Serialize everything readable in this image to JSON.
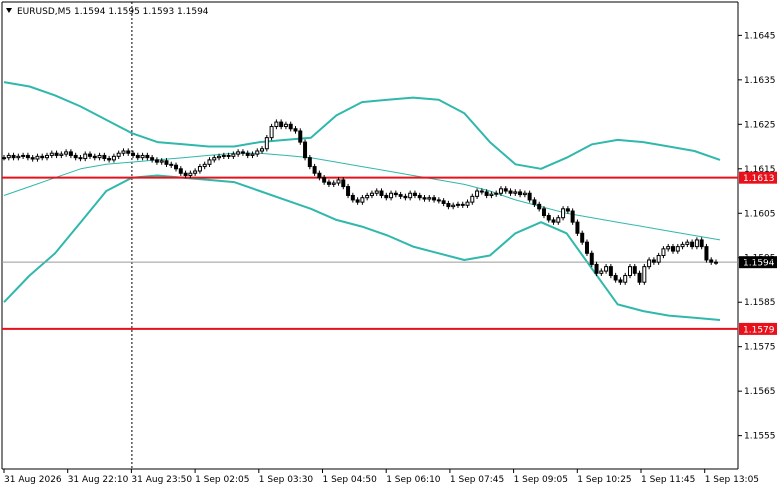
{
  "header": {
    "menu_icon": "triangle-down-icon",
    "title": "EURUSD,M5  1.1594 1.1595 1.1593 1.1594"
  },
  "colors": {
    "background": "#ffffff",
    "candle": "#000000",
    "bollinger": "#2fb8ab",
    "ma": "#2fb8ab",
    "level": "#e8101a",
    "grid_axis": "#000000"
  },
  "chart_data": {
    "type": "candlestick",
    "symbol": "EURUSD",
    "timeframe": "M5",
    "ylim": [
      1.15475,
      1.16525
    ],
    "y_ticks": [
      "1.1645",
      "1.1635",
      "1.1625",
      "1.1615",
      "1.1605",
      "1.1595",
      "1.1585",
      "1.1575",
      "1.1565",
      "1.1555"
    ],
    "x_ticks": [
      "31 Aug 2026",
      "31 Aug 22:10",
      "31 Aug 23:50",
      "1 Sep 02:05",
      "1 Sep 03:30",
      "1 Sep 04:50",
      "1 Sep 06:10",
      "1 Sep 07:45",
      "1 Sep 09:05",
      "1 Sep 10:25",
      "1 Sep 11:45",
      "1 Sep 13:05"
    ],
    "session_separator_after": "31 Aug 23:50",
    "levels": [
      {
        "value": 1.1613,
        "label": "1.1613"
      },
      {
        "value": 1.1579,
        "label": "1.1579"
      }
    ],
    "current_price": {
      "value": 1.1594,
      "label": "1.1594"
    },
    "candles_close": [
      1.16175,
      1.1618,
      1.16175,
      1.16178,
      1.1618,
      1.16175,
      1.16172,
      1.16178,
      1.16175,
      1.1618,
      1.16185,
      1.1618,
      1.16183,
      1.16188,
      1.1618,
      1.16175,
      1.16173,
      1.16183,
      1.16178,
      1.16175,
      1.1618,
      1.16173,
      1.1617,
      1.16178,
      1.16185,
      1.1619,
      1.16185,
      1.1618,
      1.16175,
      1.1618,
      1.16175,
      1.1617,
      1.16165,
      1.16168,
      1.1616,
      1.16158,
      1.1615,
      1.1614,
      1.16135,
      1.1614,
      1.16145,
      1.16155,
      1.1616,
      1.1617,
      1.16175,
      1.16178,
      1.1618,
      1.16178,
      1.16183,
      1.16188,
      1.16185,
      1.1618,
      1.16183,
      1.1619,
      1.16195,
      1.1622,
      1.16245,
      1.16255,
      1.16245,
      1.1625,
      1.1624,
      1.16235,
      1.1621,
      1.16175,
      1.16155,
      1.1614,
      1.1613,
      1.1612,
      1.16115,
      1.16118,
      1.16125,
      1.1611,
      1.1609,
      1.1608,
      1.16075,
      1.16085,
      1.1609,
      1.16095,
      1.161,
      1.1609,
      1.16085,
      1.16095,
      1.16092,
      1.16088,
      1.16085,
      1.16095,
      1.1609,
      1.16085,
      1.16082,
      1.16085,
      1.1608,
      1.16078,
      1.16072,
      1.16065,
      1.16068,
      1.1607,
      1.16068,
      1.16075,
      1.16088,
      1.161,
      1.16098,
      1.1609,
      1.16093,
      1.16095,
      1.16105,
      1.161,
      1.16095,
      1.16098,
      1.16092,
      1.16095,
      1.1608,
      1.1607,
      1.1606,
      1.16045,
      1.16035,
      1.1603,
      1.1604,
      1.1606,
      1.16055,
      1.1603,
      1.16005,
      1.15985,
      1.1596,
      1.15935,
      1.15915,
      1.1592,
      1.1593,
      1.1591,
      1.159,
      1.15895,
      1.1591,
      1.1593,
      1.15915,
      1.15895,
      1.1593,
      1.15945,
      1.1594,
      1.15955,
      1.1597,
      1.15975,
      1.15965,
      1.15975,
      1.1598,
      1.15985,
      1.15975,
      1.1599,
      1.15975,
      1.15945,
      1.1594,
      1.1594
    ],
    "bollinger_upper": [
      1.16345,
      1.16335,
      1.16315,
      1.1629,
      1.1626,
      1.1623,
      1.1621,
      1.16205,
      1.162,
      1.162,
      1.1621,
      1.16215,
      1.1622,
      1.1627,
      1.163,
      1.16305,
      1.1631,
      1.16305,
      1.16275,
      1.1621,
      1.1616,
      1.1615,
      1.16175,
      1.16205,
      1.16215,
      1.1621,
      1.162,
      1.1619,
      1.1617
    ],
    "bollinger_lower": [
      1.1585,
      1.1591,
      1.1596,
      1.1603,
      1.161,
      1.1613,
      1.16135,
      1.1613,
      1.16125,
      1.1612,
      1.161,
      1.1608,
      1.1606,
      1.16035,
      1.1602,
      1.16,
      1.15975,
      1.1596,
      1.15945,
      1.15955,
      1.16005,
      1.1603,
      1.16005,
      1.15925,
      1.15845,
      1.1583,
      1.1582,
      1.15815,
      1.1581
    ],
    "moving_average": [
      1.1609,
      1.1611,
      1.1613,
      1.1615,
      1.1616,
      1.16165,
      1.1617,
      1.16175,
      1.1618,
      1.16185,
      1.16185,
      1.1618,
      1.16175,
      1.16165,
      1.16155,
      1.16145,
      1.16135,
      1.16125,
      1.16115,
      1.161,
      1.1608,
      1.16065,
      1.1605,
      1.1604,
      1.1603,
      1.1602,
      1.1601,
      1.16,
      1.1599
    ]
  }
}
